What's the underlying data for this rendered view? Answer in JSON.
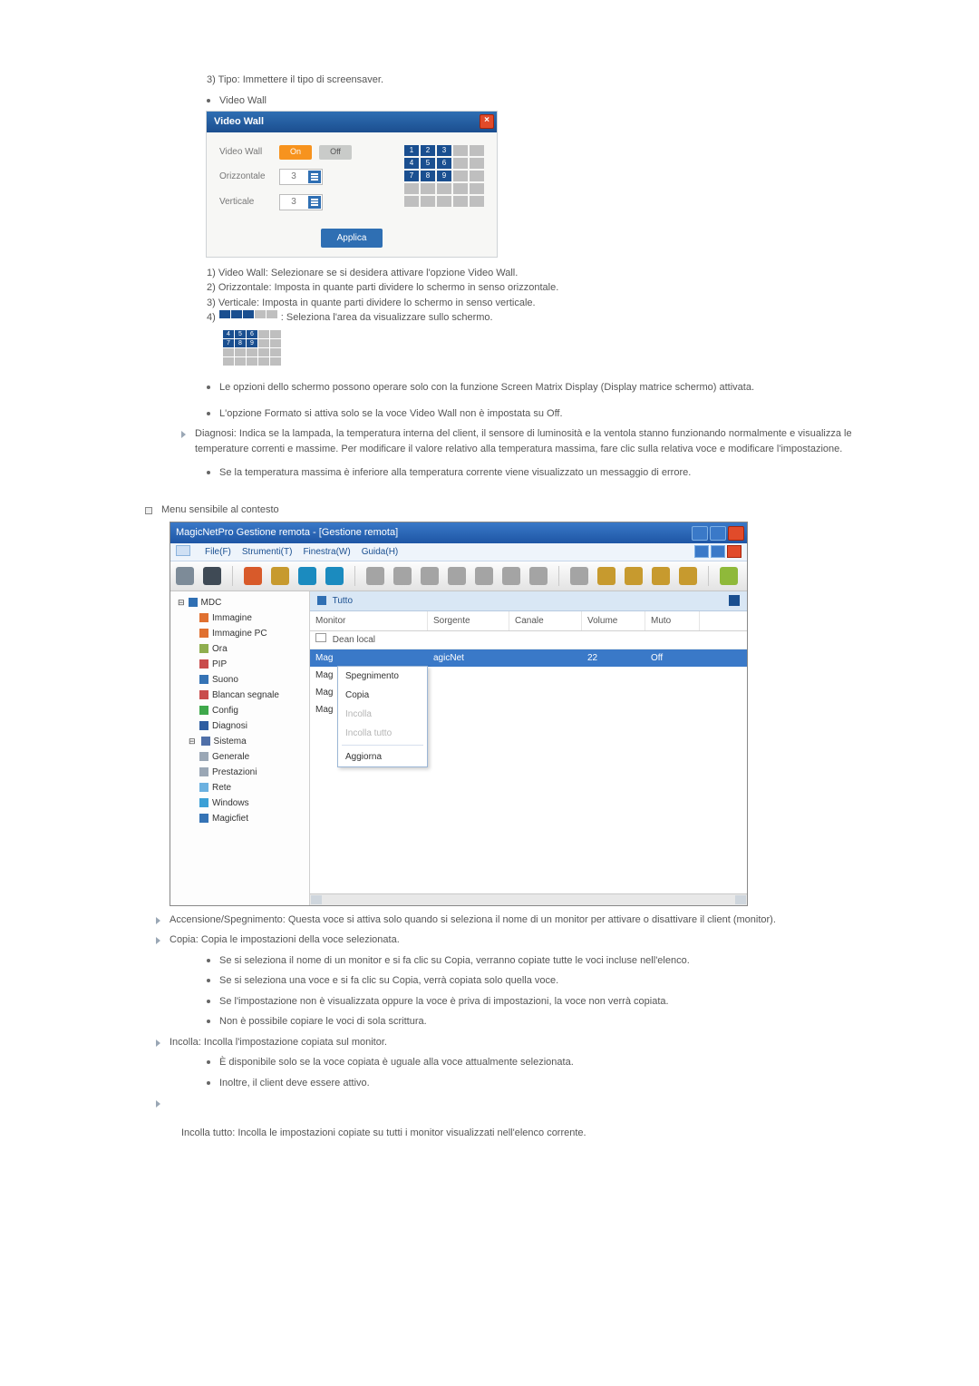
{
  "intro_line": "3) Tipo: Immettere il tipo di screensaver.",
  "video_wall_heading": "Video Wall",
  "vw_dialog": {
    "title": "Video Wall",
    "label_video_wall": "Video Wall",
    "btn_on": "On",
    "btn_off": "Off",
    "label_horizontal": "Orizzontale",
    "label_vertical": "Verticale",
    "spin_h": "3",
    "spin_v": "3",
    "btn_apply": "Applica",
    "grid_active": [
      1,
      2,
      3,
      4,
      5,
      6,
      7,
      8,
      9
    ]
  },
  "vw_notes": {
    "n1": "1) Video Wall: Selezionare se si desidera attivare l'opzione Video Wall.",
    "n2": "2) Orizzontale: Imposta in quante parti dividere lo schermo in senso orizzontale.",
    "n3": "3) Verticale: Imposta in quante parti dividere lo schermo in senso verticale.",
    "n4_prefix": "4) ",
    "n4_suffix": " : Seleziona l'area da visualizzare sullo schermo."
  },
  "vw_bullets": {
    "b1": "Le opzioni dello schermo possono operare solo con la funzione Screen Matrix Display (Display matrice schermo) attivata.",
    "b2": "L'opzione Formato si attiva solo se la voce Video Wall non è impostata su Off."
  },
  "diagnosi": "Diagnosi: Indica se la lampada, la temperatura interna del client, il sensore di luminosità e la ventola stanno funzionando normalmente e visualizza le temperature correnti e massime. Per modificare il valore relativo alla temperatura massima, fare clic sulla relativa voce e modificare l'impostazione.",
  "diagnosi_sub": "Se la temperatura massima è inferiore alla temperatura corrente viene visualizzato un messaggio di errore.",
  "context_heading": "Menu sensibile al contesto",
  "mnp": {
    "title": "MagicNetPro Gestione remota - [Gestione remota]",
    "menu": [
      "File(F)",
      "Strumenti(T)",
      "Finestra(W)",
      "Guida(H)"
    ],
    "tree_root": "MDC",
    "tree": [
      {
        "label": "Immagine",
        "icon": "#E07030",
        "lvl": 1
      },
      {
        "label": "Immagine PC",
        "icon": "#E07030",
        "lvl": 1
      },
      {
        "label": "Ora",
        "icon": "#8FAE4F",
        "lvl": 1
      },
      {
        "label": "PIP",
        "icon": "#C94C4C",
        "lvl": 1
      },
      {
        "label": "Suono",
        "icon": "#3573B5",
        "lvl": 1
      },
      {
        "label": "Blancan segnale",
        "icon": "#C94C4C",
        "lvl": 1
      },
      {
        "label": "Config",
        "icon": "#3FA84B",
        "lvl": 1
      },
      {
        "label": "Diagnosi",
        "icon": "#2E5DA1",
        "lvl": 1
      },
      {
        "label": "Sistema",
        "icon": "#4F6FA8",
        "lvl": 0,
        "expand": true
      },
      {
        "label": "Generale",
        "icon": "#9AA7B5",
        "lvl": 1
      },
      {
        "label": "Prestazioni",
        "icon": "#9AA7B5",
        "lvl": 1
      },
      {
        "label": "Rete",
        "icon": "#6CB1E0",
        "lvl": 1
      },
      {
        "label": "Windows",
        "icon": "#3CA0D6",
        "lvl": 1
      },
      {
        "label": "Magicfiet",
        "icon": "#3573B5",
        "lvl": 1
      }
    ],
    "tab_label": "Tutto",
    "columns": [
      "Monitor",
      "Sorgente",
      "Canale",
      "Volume",
      "Muto"
    ],
    "rows_header2": "Dean local",
    "rows": [
      {
        "c0": "Mag",
        "c1": "agicNet",
        "c2": "",
        "c3": "22",
        "c4": "Off",
        "sel": true
      },
      {
        "c0": "Mag",
        "c1": "",
        "c2": "",
        "c3": "",
        "c4": ""
      },
      {
        "c0": "Mag",
        "c1": "",
        "c2": "",
        "c3": "",
        "c4": ""
      },
      {
        "c0": "Mag",
        "c1": "",
        "c2": "",
        "c3": "",
        "c4": ""
      }
    ],
    "context_menu": [
      {
        "label": "Spegnimento",
        "dis": false
      },
      {
        "label": "Copia",
        "dis": false
      },
      {
        "label": "Incolla",
        "dis": true
      },
      {
        "label": "Incolla tutto",
        "dis": true
      },
      {
        "sep": true
      },
      {
        "label": "Aggiorna",
        "dis": false
      }
    ],
    "toolbar_colors": [
      "#7d8b98",
      "#3f4a55",
      "#d85a2a",
      "#c79a2e",
      "#1b8bbf",
      "#1b8bbf",
      "#a4a4a4",
      "#a4a4a4",
      "#a4a4a4",
      "#a4a4a4",
      "#a4a4a4",
      "#a4a4a4",
      "#a4a4a4",
      "#a4a4a4",
      "#c79a2e",
      "#c79a2e",
      "#c79a2e",
      "#c79a2e",
      "#8fb93a"
    ]
  },
  "post": {
    "p1": "Accensione/Spegnimento: Questa voce si attiva solo quando si seleziona il nome di un monitor per attivare o disattivare il client (monitor).",
    "p2": "Copia: Copia le impostazioni della voce selezionata.",
    "p2b": [
      "Se si seleziona il nome di un monitor e si fa clic su Copia, verranno copiate tutte le voci incluse nell'elenco.",
      "Se si seleziona una voce e si fa clic su Copia, verrà copiata solo quella voce.",
      "Se l'impostazione non è visualizzata oppure la voce è priva di impostazioni, la voce non verrà copiata.",
      "Non è possibile copiare le voci di sola scrittura."
    ],
    "p3": "Incolla: Incolla l'impostazione copiata sul monitor.",
    "p3b": [
      "È disponibile solo se la voce copiata è uguale alla voce attualmente selezionata.",
      "Inoltre, il client deve essere attivo."
    ],
    "p4": "Incolla tutto: Incolla le impostazioni copiate su tutti i monitor visualizzati nell'elenco corrente."
  }
}
